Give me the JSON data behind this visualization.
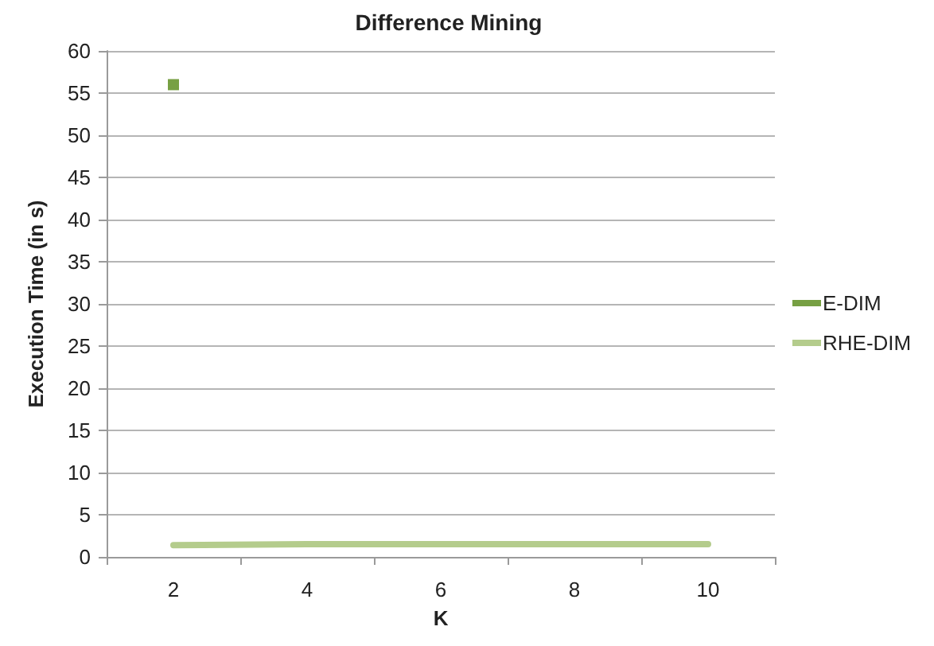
{
  "chart_data": {
    "type": "line",
    "title": "Difference Mining",
    "xlabel": "K",
    "ylabel": "Execution Time (in s)",
    "categories": [
      "2",
      "4",
      "6",
      "8",
      "10"
    ],
    "series": [
      {
        "name": "E-DIM",
        "color": "#77a043",
        "values": [
          56,
          null,
          null,
          null,
          null
        ],
        "marker": "square"
      },
      {
        "name": "RHE-DIM",
        "color": "#b4cc8c",
        "values": [
          1.4,
          1.5,
          1.5,
          1.5,
          1.5
        ],
        "marker": "none"
      }
    ],
    "ylim": [
      0,
      60
    ],
    "yticks": [
      0,
      5,
      10,
      15,
      20,
      25,
      30,
      35,
      40,
      45,
      50,
      55,
      60
    ],
    "grid": "y",
    "legend": "right",
    "line_style": "solid"
  }
}
